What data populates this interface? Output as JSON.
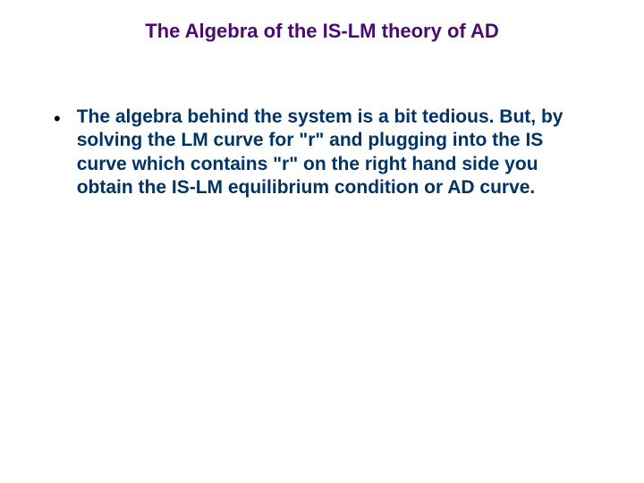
{
  "slide": {
    "title": "The Algebra of the IS-LM theory of AD",
    "title_color": "#4b0a6e",
    "bullet_symbol": "•",
    "body_text": "The algebra behind the system is a bit tedious. But, by solving the LM curve for \"r\" and plugging into the IS curve which contains \"r\" on the right hand side you obtain the IS-LM equilibrium condition or AD curve.",
    "body_color": "#003366",
    "background_color": "#ffffff",
    "title_fontsize": 22,
    "body_fontsize": 21,
    "font_family": "Arial"
  }
}
